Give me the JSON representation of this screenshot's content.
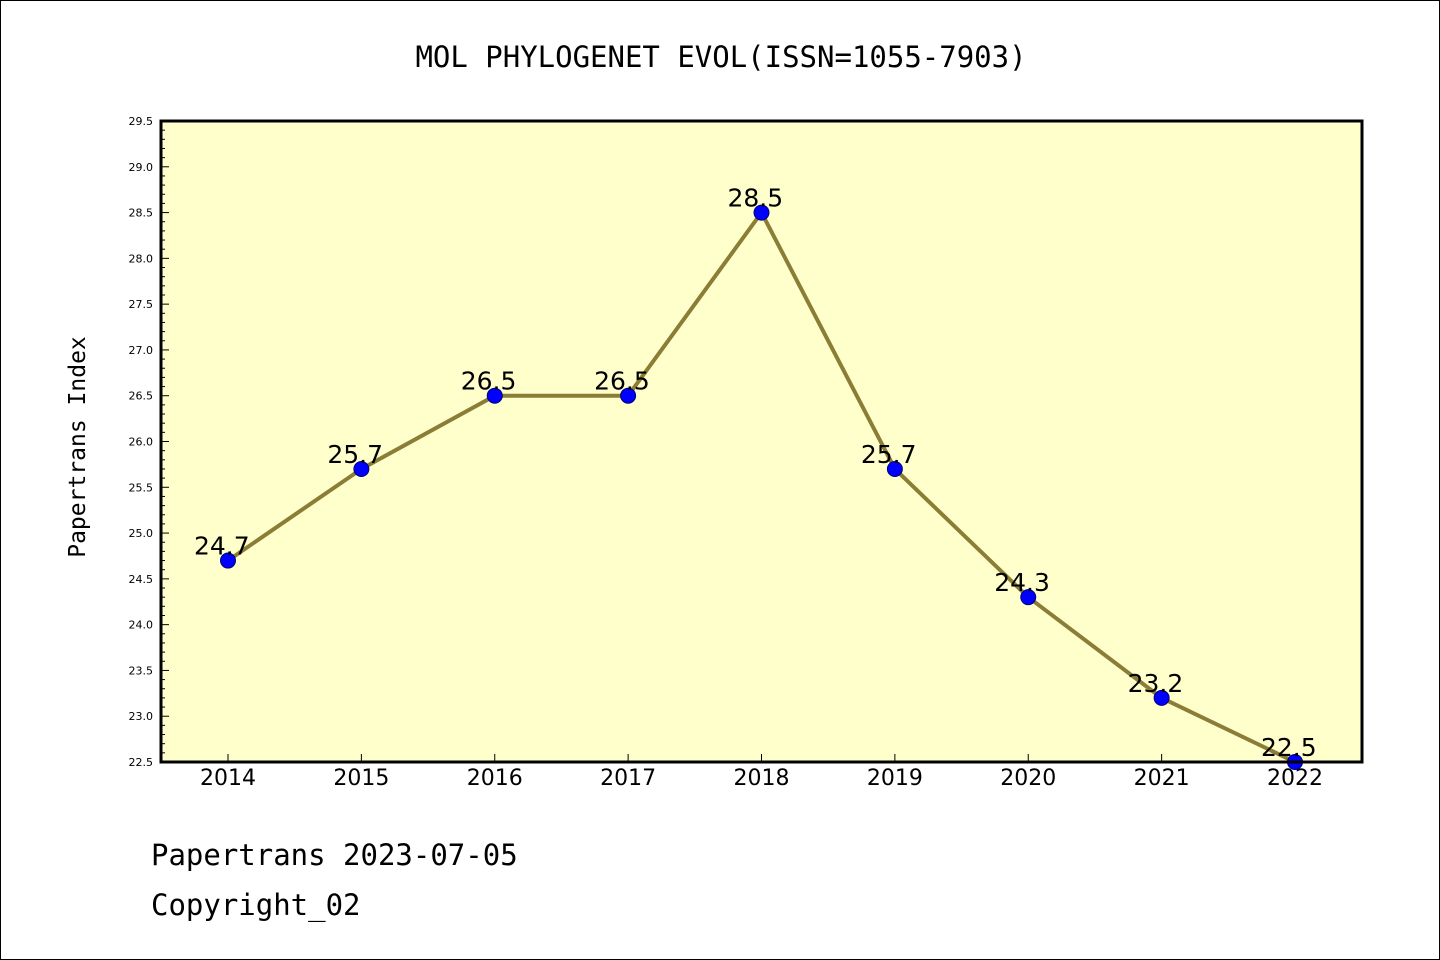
{
  "chart_data": {
    "type": "line",
    "title": "MOL PHYLOGENET EVOL(ISSN=1055-7903)",
    "xlabel": "",
    "ylabel": "Papertrans Index",
    "x": [
      "2014",
      "2015",
      "2016",
      "2017",
      "2018",
      "2019",
      "2020",
      "2021",
      "2022"
    ],
    "values": [
      24.7,
      25.7,
      26.5,
      26.5,
      28.5,
      25.7,
      24.3,
      23.2,
      22.5
    ],
    "data_labels": [
      "24.7",
      "25.7",
      "26.5",
      "26.5",
      "28.5",
      "25.7",
      "24.3",
      "23.2",
      "22.5"
    ],
    "ylim": [
      22.5,
      29.5
    ],
    "yticks": [
      "22.5",
      "23.0",
      "23.5",
      "24.0",
      "24.5",
      "25.0",
      "25.5",
      "26.0",
      "26.5",
      "27.0",
      "27.5",
      "28.0",
      "28.5",
      "29.0",
      "29.5"
    ],
    "grid": false,
    "legend": "none",
    "colors": {
      "plot_background": "#ffffcc",
      "line": "#8b7d35",
      "marker": "#0000ff"
    }
  },
  "footer": {
    "line1": "Papertrans 2023-07-05",
    "line2": "Copyright_02"
  }
}
